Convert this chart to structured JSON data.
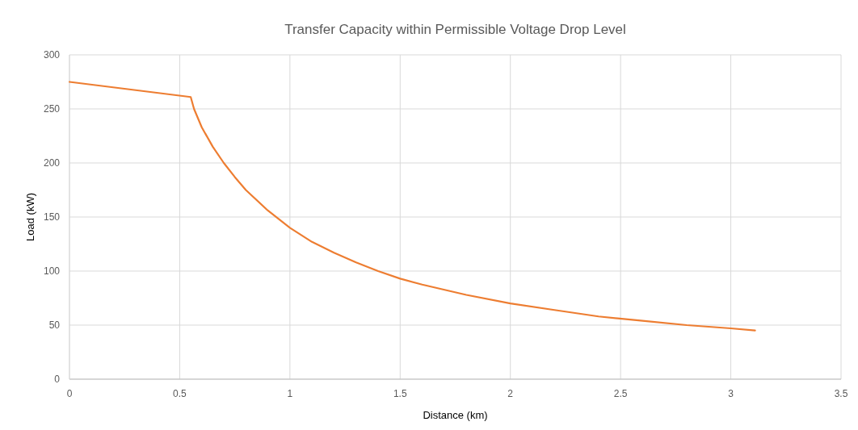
{
  "chart_data": {
    "type": "line",
    "title": "Transfer Capacity within Permissible Voltage Drop Level",
    "xlabel": "Distance (km)",
    "ylabel": "Load (kW)",
    "x": [
      0,
      0.55,
      0.565,
      0.6,
      0.65,
      0.7,
      0.75,
      0.8,
      0.9,
      1,
      1.1,
      1.2,
      1.3,
      1.4,
      1.5,
      1.6,
      1.8,
      2,
      2.2,
      2.4,
      2.6,
      2.8,
      3,
      3.11
    ],
    "series": [
      {
        "color": "#ed7d31",
        "values": [
          275,
          261,
          250,
          233,
          215,
          200,
          187,
          175,
          156,
          140,
          127,
          117,
          108,
          100,
          93,
          87.5,
          78,
          70,
          64,
          58,
          54,
          50,
          47,
          45
        ]
      }
    ],
    "xlim": [
      0,
      3.5
    ],
    "xticks": [
      0,
      0.5,
      1,
      1.5,
      2,
      2.5,
      3,
      3.5
    ],
    "ylim": [
      0,
      300
    ],
    "yticks": [
      0,
      50,
      100,
      150,
      200,
      250,
      300
    ],
    "grid": true,
    "marker": "none",
    "line_style": "solid"
  }
}
